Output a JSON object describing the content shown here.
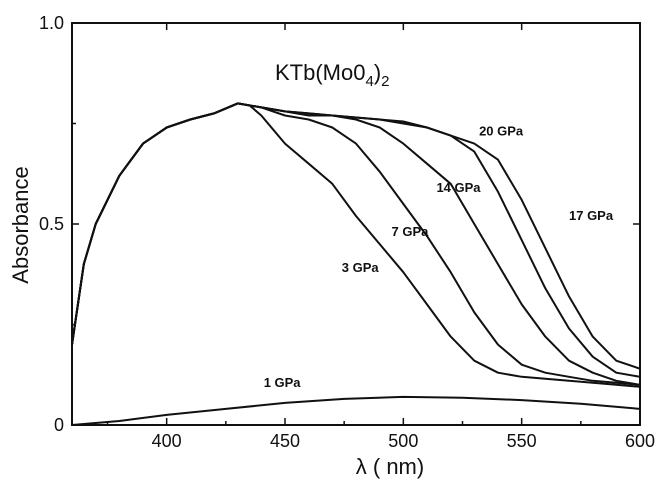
{
  "chart_data": {
    "type": "line",
    "title": "KTb(MoO4)2",
    "title_parts": {
      "main": "KTb(Mo0",
      "sub1": "4",
      "paren": ")",
      "sub2": "2"
    },
    "xlabel": "λ ( nm)",
    "ylabel": "Absorbance",
    "xlim": [
      360,
      600
    ],
    "ylim": [
      0,
      1.0
    ],
    "x_ticks": [
      {
        "value": 400,
        "label": "400"
      },
      {
        "value": 450,
        "label": "450"
      },
      {
        "value": 500,
        "label": "500"
      },
      {
        "value": 550,
        "label": "550"
      },
      {
        "value": 600,
        "label": "600"
      }
    ],
    "y_ticks": [
      {
        "value": 0,
        "label": "0"
      },
      {
        "value": 0.5,
        "label": "0.5"
      },
      {
        "value": 1.0,
        "label": "1.0"
      }
    ],
    "grid": false,
    "legend": "inline labels",
    "series": [
      {
        "name": "1 GPa",
        "label_at": [
          441,
          0.095
        ],
        "x": [
          360,
          380,
          400,
          425,
          450,
          475,
          500,
          525,
          550,
          575,
          600
        ],
        "y": [
          0.0,
          0.01,
          0.025,
          0.04,
          0.055,
          0.065,
          0.07,
          0.068,
          0.062,
          0.053,
          0.04
        ]
      },
      {
        "name": "3 GPa",
        "label_at": [
          474,
          0.38
        ],
        "x": [
          360,
          365,
          370,
          380,
          390,
          400,
          410,
          420,
          430,
          435,
          440,
          450,
          460,
          470,
          480,
          490,
          500,
          510,
          520,
          530,
          540,
          550,
          560,
          570,
          580,
          590,
          600
        ],
        "y": [
          0.2,
          0.4,
          0.5,
          0.62,
          0.7,
          0.74,
          0.76,
          0.775,
          0.8,
          0.795,
          0.77,
          0.7,
          0.65,
          0.6,
          0.52,
          0.45,
          0.38,
          0.3,
          0.22,
          0.16,
          0.13,
          0.12,
          0.115,
          0.11,
          0.105,
          0.1,
          0.095
        ]
      },
      {
        "name": "7 GPa",
        "label_at": [
          495,
          0.47
        ],
        "x": [
          360,
          365,
          370,
          380,
          390,
          400,
          410,
          420,
          430,
          440,
          450,
          460,
          470,
          480,
          490,
          500,
          510,
          520,
          530,
          540,
          550,
          560,
          570,
          580,
          590,
          600
        ],
        "y": [
          0.2,
          0.4,
          0.5,
          0.62,
          0.7,
          0.74,
          0.76,
          0.775,
          0.8,
          0.79,
          0.77,
          0.76,
          0.74,
          0.7,
          0.63,
          0.55,
          0.47,
          0.38,
          0.28,
          0.2,
          0.15,
          0.13,
          0.12,
          0.11,
          0.105,
          0.1
        ]
      },
      {
        "name": "14 GPa",
        "label_at": [
          514,
          0.58
        ],
        "x": [
          360,
          365,
          370,
          380,
          390,
          400,
          410,
          420,
          430,
          440,
          450,
          460,
          470,
          480,
          490,
          500,
          510,
          520,
          530,
          540,
          550,
          560,
          570,
          580,
          590,
          600
        ],
        "y": [
          0.2,
          0.4,
          0.5,
          0.62,
          0.7,
          0.74,
          0.76,
          0.775,
          0.8,
          0.79,
          0.78,
          0.77,
          0.77,
          0.76,
          0.74,
          0.7,
          0.65,
          0.6,
          0.5,
          0.4,
          0.3,
          0.22,
          0.16,
          0.13,
          0.11,
          0.1
        ]
      },
      {
        "name": "17 GPa",
        "label_at": [
          570,
          0.51
        ],
        "x": [
          360,
          365,
          370,
          380,
          390,
          400,
          410,
          420,
          430,
          440,
          450,
          460,
          470,
          480,
          490,
          500,
          510,
          520,
          530,
          540,
          550,
          560,
          570,
          580,
          590,
          600
        ],
        "y": [
          0.2,
          0.4,
          0.5,
          0.62,
          0.7,
          0.74,
          0.76,
          0.775,
          0.8,
          0.79,
          0.78,
          0.775,
          0.77,
          0.765,
          0.76,
          0.75,
          0.74,
          0.72,
          0.68,
          0.58,
          0.46,
          0.34,
          0.24,
          0.17,
          0.13,
          0.12
        ]
      },
      {
        "name": "20 GPa",
        "label_at": [
          532,
          0.72
        ],
        "x": [
          360,
          365,
          370,
          380,
          390,
          400,
          410,
          420,
          430,
          440,
          450,
          460,
          470,
          480,
          490,
          500,
          510,
          520,
          530,
          540,
          550,
          560,
          570,
          580,
          590,
          600
        ],
        "y": [
          0.2,
          0.4,
          0.5,
          0.62,
          0.7,
          0.74,
          0.76,
          0.775,
          0.8,
          0.79,
          0.78,
          0.775,
          0.77,
          0.765,
          0.76,
          0.755,
          0.74,
          0.72,
          0.7,
          0.66,
          0.56,
          0.44,
          0.32,
          0.22,
          0.16,
          0.14
        ]
      }
    ]
  }
}
